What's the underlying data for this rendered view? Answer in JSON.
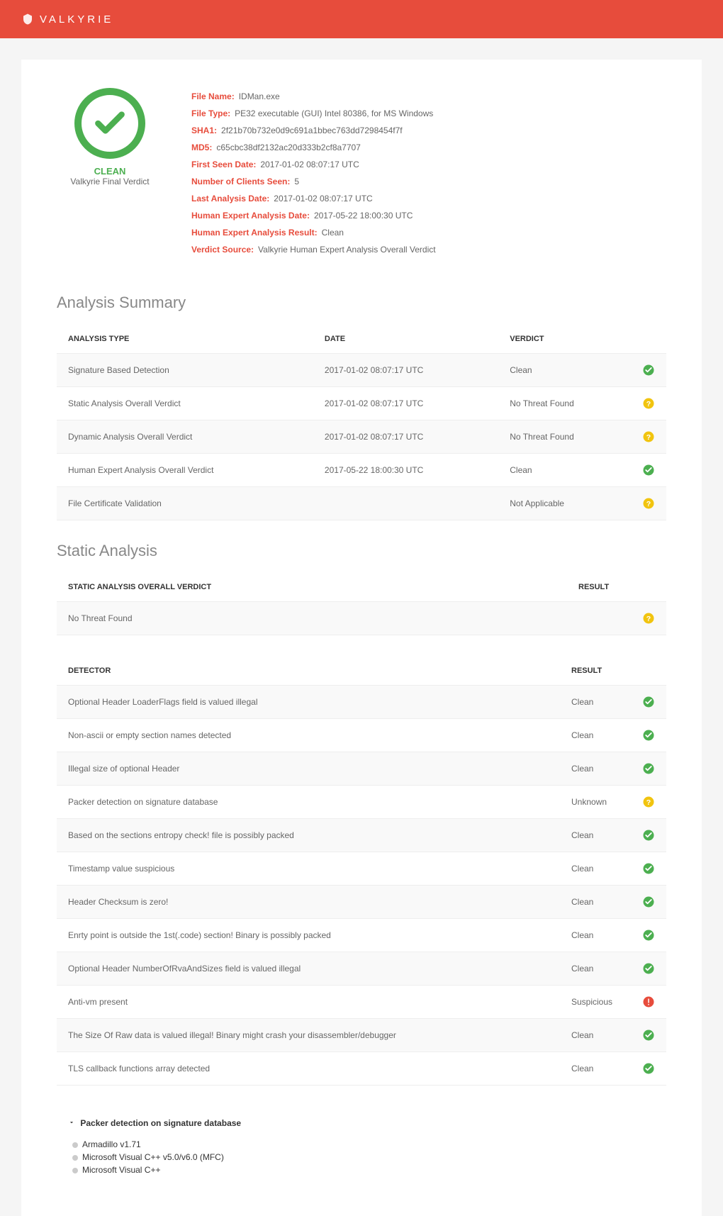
{
  "brand": {
    "name": "VALKYRIE"
  },
  "colors": {
    "brand": "#e74c3c",
    "clean": "#4caf50",
    "warn": "#f1c40f",
    "danger": "#e74c3c"
  },
  "verdict": {
    "status": "CLEAN",
    "subtitle": "Valkyrie Final Verdict"
  },
  "file": {
    "fields": [
      {
        "label": "File Name:",
        "value": "IDMan.exe"
      },
      {
        "label": "File Type:",
        "value": "PE32 executable (GUI) Intel 80386, for MS Windows"
      },
      {
        "label": "SHA1:",
        "value": "2f21b70b732e0d9c691a1bbec763dd7298454f7f"
      },
      {
        "label": "MD5:",
        "value": "c65cbc38df2132ac20d333b2cf8a7707"
      },
      {
        "label": "First Seen Date:",
        "value": "2017-01-02 08:07:17 UTC"
      },
      {
        "label": "Number of Clients Seen:",
        "value": "5"
      },
      {
        "label": "Last Analysis Date:",
        "value": "2017-01-02 08:07:17 UTC"
      },
      {
        "label": "Human Expert Analysis Date:",
        "value": "2017-05-22 18:00:30 UTC"
      },
      {
        "label": "Human Expert Analysis Result:",
        "value": "Clean"
      },
      {
        "label": "Verdict Source:",
        "value": "Valkyrie Human Expert Analysis Overall Verdict"
      }
    ]
  },
  "analysis_summary": {
    "title": "Analysis Summary",
    "columns": [
      "ANALYSIS TYPE",
      "DATE",
      "VERDICT"
    ],
    "rows": [
      {
        "type": "Signature Based Detection",
        "date": "2017-01-02 08:07:17 UTC",
        "verdict": "Clean",
        "icon": "clean"
      },
      {
        "type": "Static Analysis Overall Verdict",
        "date": "2017-01-02 08:07:17 UTC",
        "verdict": "No Threat Found",
        "icon": "unknown"
      },
      {
        "type": "Dynamic Analysis Overall Verdict",
        "date": "2017-01-02 08:07:17 UTC",
        "verdict": "No Threat Found",
        "icon": "unknown"
      },
      {
        "type": "Human Expert Analysis Overall Verdict",
        "date": "2017-05-22 18:00:30 UTC",
        "verdict": "Clean",
        "icon": "clean"
      },
      {
        "type": "File Certificate Validation",
        "date": "",
        "verdict": "Not Applicable",
        "icon": "unknown"
      }
    ]
  },
  "static_analysis": {
    "title": "Static Analysis",
    "overall": {
      "columns": [
        "STATIC ANALYSIS OVERALL VERDICT",
        "RESULT"
      ],
      "row": {
        "label": "No Threat Found",
        "icon": "unknown"
      }
    },
    "detectors": {
      "columns": [
        "DETECTOR",
        "RESULT"
      ],
      "rows": [
        {
          "name": "Optional Header LoaderFlags field is valued illegal",
          "result": "Clean",
          "icon": "clean"
        },
        {
          "name": "Non-ascii or empty section names detected",
          "result": "Clean",
          "icon": "clean"
        },
        {
          "name": "Illegal size of optional Header",
          "result": "Clean",
          "icon": "clean"
        },
        {
          "name": "Packer detection on signature database",
          "result": "Unknown",
          "icon": "unknown"
        },
        {
          "name": "Based on the sections entropy check! file is possibly packed",
          "result": "Clean",
          "icon": "clean"
        },
        {
          "name": "Timestamp value suspicious",
          "result": "Clean",
          "icon": "clean"
        },
        {
          "name": "Header Checksum is zero!",
          "result": "Clean",
          "icon": "clean"
        },
        {
          "name": "Enrty point is outside the 1st(.code) section! Binary is possibly packed",
          "result": "Clean",
          "icon": "clean"
        },
        {
          "name": "Optional Header NumberOfRvaAndSizes field is valued illegal",
          "result": "Clean",
          "icon": "clean"
        },
        {
          "name": "Anti-vm present",
          "result": "Suspicious",
          "icon": "danger"
        },
        {
          "name": "The Size Of Raw data is valued illegal! Binary might crash your disassembler/debugger",
          "result": "Clean",
          "icon": "clean"
        },
        {
          "name": "TLS callback functions array detected",
          "result": "Clean",
          "icon": "clean"
        }
      ]
    }
  },
  "packer": {
    "title": "Packer detection on signature database",
    "items": [
      "Armadillo v1.71",
      "Microsoft Visual C++ v5.0/v6.0 (MFC)",
      "Microsoft Visual C++"
    ]
  },
  "icons": {
    "clean_color": "#4caf50",
    "unknown_color": "#f1c40f",
    "danger_color": "#e74c3c"
  }
}
